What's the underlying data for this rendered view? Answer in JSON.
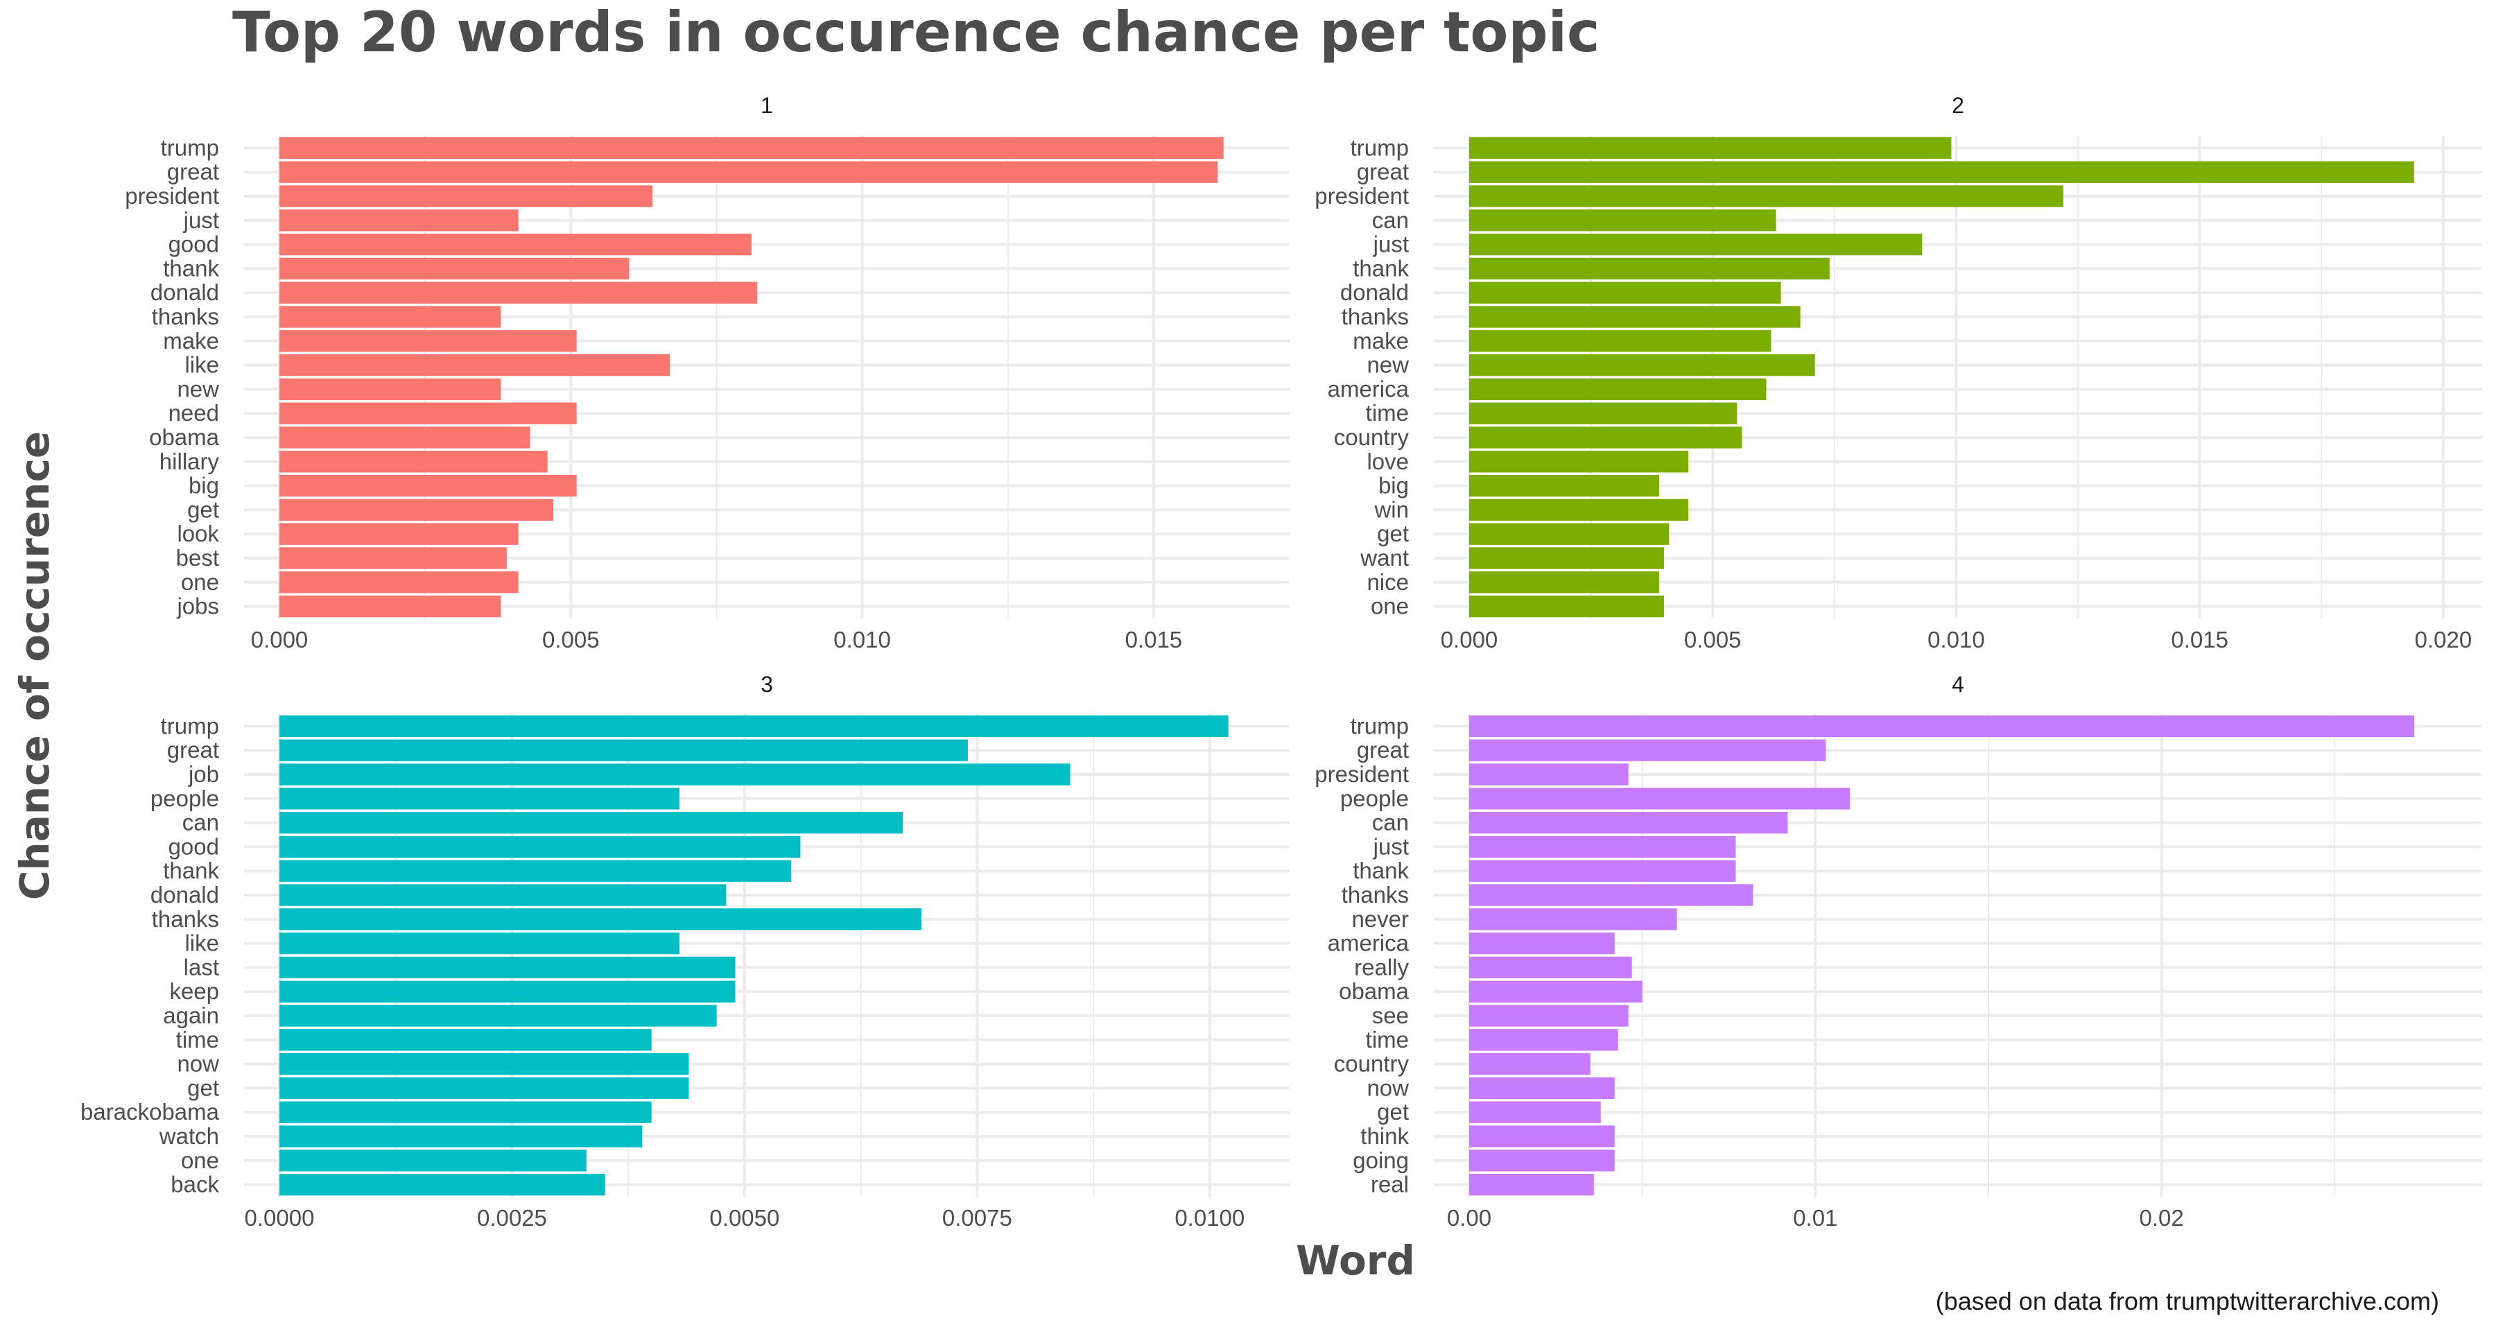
{
  "title": "Top 20 words in occurence chance per topic",
  "caption": "(based on data from trumptwitterarchive.com)",
  "colors": {
    "grid": "#ebebeb",
    "text": "#4d4d4d",
    "strip": "#1a1a1a"
  },
  "chart_data": {
    "type": "bar",
    "orientation": "horizontal",
    "xlabel": "Word",
    "ylabel": "Chance of occurence",
    "grid": true,
    "legend": "none",
    "panels": [
      {
        "name": "1",
        "color": "#F8766D",
        "xlim": [
          0,
          0.017
        ],
        "ticks": [
          0,
          0.005,
          0.01,
          0.015
        ],
        "tick_labels": [
          "0.000",
          "0.005",
          "0.010",
          "0.015"
        ],
        "categories": [
          "trump",
          "great",
          "president",
          "just",
          "good",
          "thank",
          "donald",
          "thanks",
          "make",
          "like",
          "new",
          "need",
          "obama",
          "hillary",
          "big",
          "get",
          "look",
          "best",
          "one",
          "jobs"
        ],
        "values": [
          0.0162,
          0.0161,
          0.0064,
          0.0041,
          0.0081,
          0.006,
          0.0082,
          0.0038,
          0.0051,
          0.0067,
          0.0038,
          0.0051,
          0.0043,
          0.0046,
          0.0051,
          0.0047,
          0.0041,
          0.0039,
          0.0041,
          0.0038
        ]
      },
      {
        "name": "2",
        "color": "#7CAE00",
        "xlim": [
          0,
          0.0204
        ],
        "ticks": [
          0,
          0.005,
          0.01,
          0.015,
          0.02
        ],
        "tick_labels": [
          "0.000",
          "0.005",
          "0.010",
          "0.015",
          "0.020"
        ],
        "categories": [
          "trump",
          "great",
          "president",
          "can",
          "just",
          "thank",
          "donald",
          "thanks",
          "make",
          "new",
          "america",
          "time",
          "country",
          "love",
          "big",
          "win",
          "get",
          "want",
          "nice",
          "one"
        ],
        "values": [
          0.0099,
          0.0194,
          0.0122,
          0.0063,
          0.0093,
          0.0074,
          0.0064,
          0.0068,
          0.0062,
          0.0071,
          0.0061,
          0.0055,
          0.0056,
          0.0045,
          0.0039,
          0.0045,
          0.0041,
          0.004,
          0.0039,
          0.004
        ]
      },
      {
        "name": "3",
        "color": "#00BFC4",
        "xlim": [
          0,
          0.01065
        ],
        "ticks": [
          0,
          0.0025,
          0.005,
          0.0075,
          0.01
        ],
        "tick_labels": [
          "0.0000",
          "0.0025",
          "0.0050",
          "0.0075",
          "0.0100"
        ],
        "categories": [
          "trump",
          "great",
          "job",
          "people",
          "can",
          "good",
          "thank",
          "donald",
          "thanks",
          "like",
          "last",
          "keep",
          "again",
          "time",
          "now",
          "get",
          "barackobama",
          "watch",
          "one",
          "back"
        ],
        "values": [
          0.0102,
          0.0074,
          0.0085,
          0.0043,
          0.0067,
          0.0056,
          0.0055,
          0.0048,
          0.0069,
          0.0043,
          0.0049,
          0.0049,
          0.0047,
          0.004,
          0.0044,
          0.0044,
          0.004,
          0.0039,
          0.0033,
          0.0035
        ]
      },
      {
        "name": "4",
        "color": "#C77CFF",
        "xlim": [
          0,
          0.0287
        ],
        "ticks": [
          0,
          0.01,
          0.02
        ],
        "tick_labels": [
          "0.00",
          "0.01",
          "0.02"
        ],
        "categories": [
          "trump",
          "great",
          "president",
          "people",
          "can",
          "just",
          "thank",
          "thanks",
          "never",
          "america",
          "really",
          "obama",
          "see",
          "time",
          "country",
          "now",
          "get",
          "think",
          "going",
          "real"
        ],
        "values": [
          0.0273,
          0.0103,
          0.0046,
          0.011,
          0.0092,
          0.0077,
          0.0077,
          0.0082,
          0.006,
          0.0042,
          0.0047,
          0.005,
          0.0046,
          0.0043,
          0.0035,
          0.0042,
          0.0038,
          0.0042,
          0.0042,
          0.0036
        ]
      }
    ]
  }
}
